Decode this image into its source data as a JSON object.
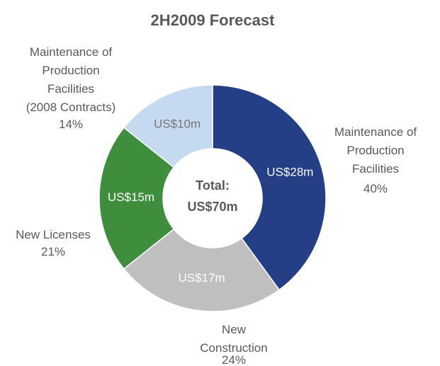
{
  "chart_data": {
    "type": "donut",
    "title": "2H2009 Forecast",
    "categories": [
      "Maintenance of\nProduction\nFacilities",
      "New\nConstruction",
      "New Licenses",
      "Maintenance of\nProduction\nFacilities\n(2008 Contracts)"
    ],
    "values": [
      28,
      17,
      15,
      10
    ],
    "value_labels": [
      "US$28m",
      "US$17m",
      "US$15m",
      "US$10m"
    ],
    "percent_labels": [
      "40%",
      "24%",
      "21%",
      "14%"
    ],
    "colors": [
      "#243f86",
      "#bfbfbf",
      "#3e8e3e",
      "#c5d9f1"
    ],
    "center_label": "Total:\nUS$70m"
  }
}
